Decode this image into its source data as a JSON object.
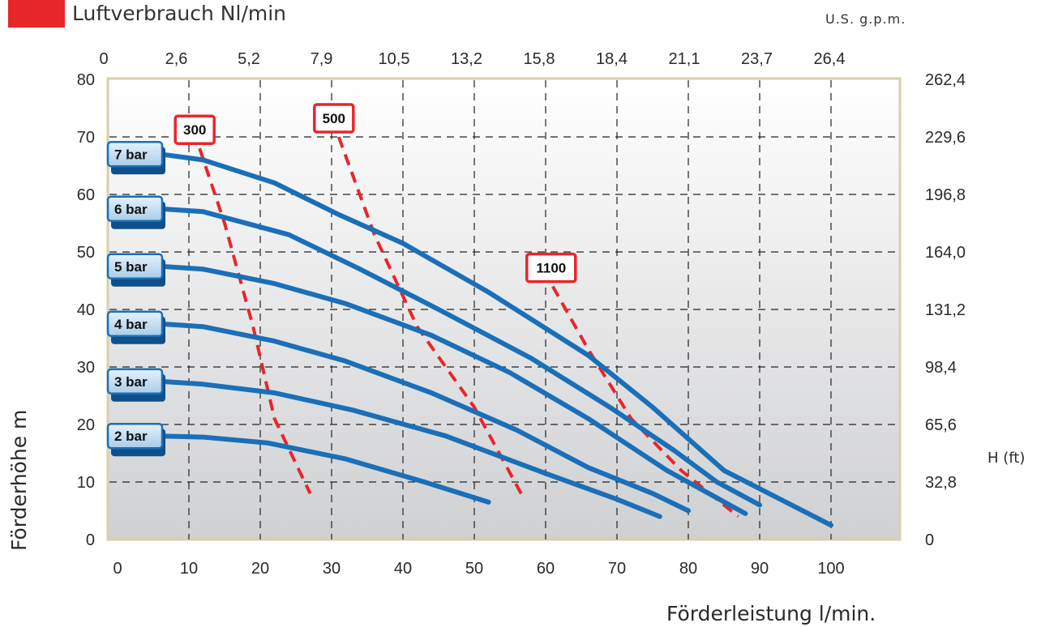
{
  "legend": {
    "label": "Luftverbrauch Nl/min",
    "color": "#e8262b"
  },
  "chart_data": {
    "type": "line",
    "xlabel": "Förderleistung l/min.",
    "ylabel": "Förderhöhe m",
    "y2label": "H (ft)",
    "x2label": "U.S. g.p.m.",
    "xlim": [
      0,
      110
    ],
    "ylim": [
      0,
      80
    ],
    "x_ticks": [
      "0",
      "10",
      "20",
      "30",
      "40",
      "50",
      "60",
      "70",
      "80",
      "90",
      "100"
    ],
    "y_ticks": [
      "0",
      "10",
      "20",
      "30",
      "40",
      "50",
      "60",
      "70",
      "80"
    ],
    "x2_ticks": [
      "0",
      "2,6",
      "5,2",
      "7,9",
      "10,5",
      "13,2",
      "15,8",
      "18,4",
      "21,1",
      "23,7",
      "26,4"
    ],
    "y2_ticks": [
      "0",
      "32,8",
      "65,6",
      "98,4",
      "131,2",
      "164,0",
      "196,8",
      "229,6",
      "262,4"
    ],
    "grid": true,
    "pressure_color": "#1a6fb8",
    "air_color": "#e8262b",
    "series": [
      {
        "name": "2 bar",
        "points": [
          [
            6,
            18
          ],
          [
            12,
            17.8
          ],
          [
            21,
            16.8
          ],
          [
            32,
            14
          ],
          [
            43,
            10
          ],
          [
            52,
            6.5
          ]
        ]
      },
      {
        "name": "3 bar",
        "points": [
          [
            6,
            27.5
          ],
          [
            12,
            27
          ],
          [
            22,
            25.5
          ],
          [
            33,
            22.5
          ],
          [
            46,
            18
          ],
          [
            60,
            11.5
          ],
          [
            70,
            7
          ],
          [
            76,
            4
          ]
        ]
      },
      {
        "name": "4 bar",
        "points": [
          [
            6,
            37.5
          ],
          [
            12,
            37
          ],
          [
            22,
            34.5
          ],
          [
            32,
            31
          ],
          [
            44,
            25.5
          ],
          [
            56,
            19
          ],
          [
            66,
            12.5
          ],
          [
            75,
            8
          ],
          [
            80,
            5
          ]
        ]
      },
      {
        "name": "5 bar",
        "points": [
          [
            6,
            47.5
          ],
          [
            12,
            47
          ],
          [
            22,
            44.5
          ],
          [
            32,
            41
          ],
          [
            44,
            35.5
          ],
          [
            55,
            29
          ],
          [
            66,
            21
          ],
          [
            77,
            12
          ],
          [
            88,
            4.5
          ]
        ]
      },
      {
        "name": "6 bar",
        "points": [
          [
            6,
            57.5
          ],
          [
            12,
            57
          ],
          [
            24,
            53
          ],
          [
            34,
            47
          ],
          [
            45,
            40
          ],
          [
            58,
            31.5
          ],
          [
            69,
            23
          ],
          [
            78,
            15.5
          ],
          [
            84,
            10
          ],
          [
            90,
            6
          ]
        ]
      },
      {
        "name": "7 bar",
        "points": [
          [
            6,
            67
          ],
          [
            12,
            66
          ],
          [
            22,
            62
          ],
          [
            31,
            56.5
          ],
          [
            40,
            51.5
          ],
          [
            52,
            43
          ],
          [
            66,
            32
          ],
          [
            75,
            23
          ],
          [
            85,
            12
          ],
          [
            100,
            2.5
          ]
        ]
      }
    ],
    "air_consumption": [
      {
        "name": "300",
        "points": [
          [
            11.5,
            68
          ],
          [
            15,
            55
          ],
          [
            19,
            37
          ],
          [
            22,
            21
          ],
          [
            27,
            8
          ]
        ]
      },
      {
        "name": "500",
        "points": [
          [
            31,
            70
          ],
          [
            36,
            53
          ],
          [
            42,
            37
          ],
          [
            50,
            23
          ],
          [
            57,
            7
          ]
        ]
      },
      {
        "name": "1100",
        "points": [
          [
            61,
            44
          ],
          [
            66,
            33
          ],
          [
            72,
            21
          ],
          [
            79,
            12
          ],
          [
            87,
            4
          ]
        ]
      }
    ]
  }
}
